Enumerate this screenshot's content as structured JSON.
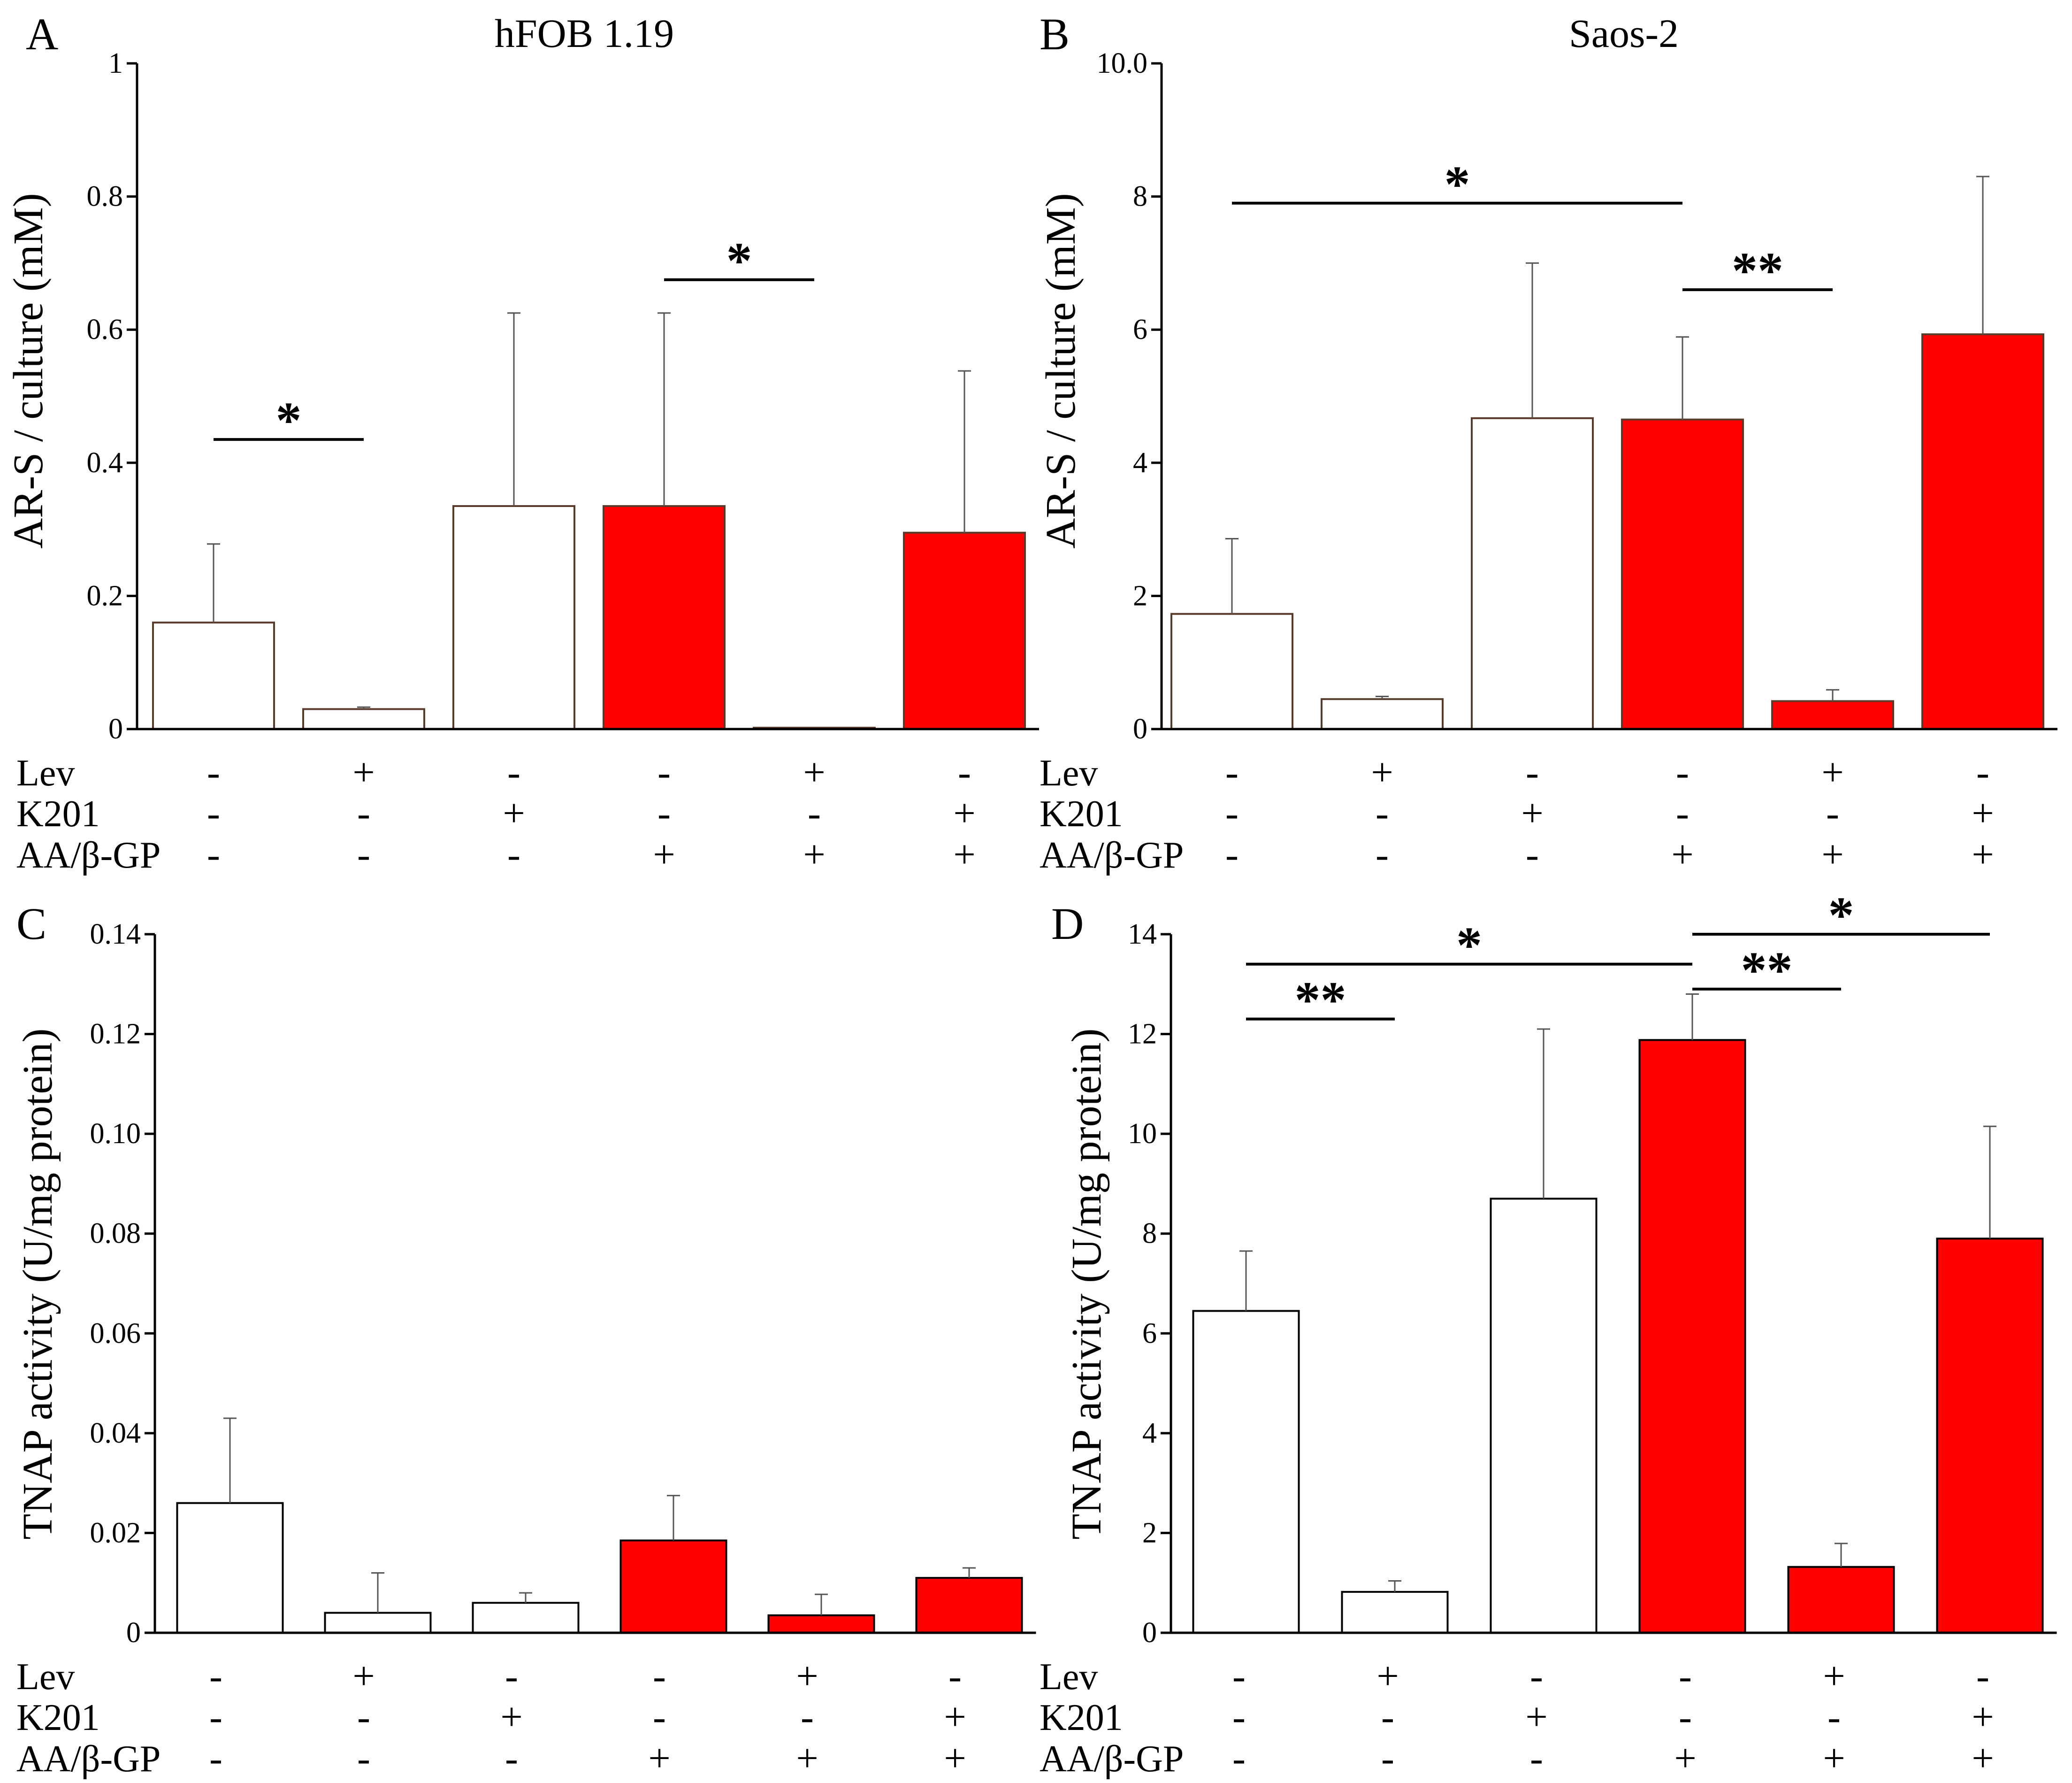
{
  "chart_data": [
    {
      "panel": "A",
      "type": "bar",
      "title": "hFOB 1.19",
      "ylabel": "AR-S / culture (mM)",
      "ylim": [
        0,
        1
      ],
      "yticks": [
        {
          "v": 0,
          "label": "0"
        },
        {
          "v": 0.2,
          "label": "0.2"
        },
        {
          "v": 0.4,
          "label": "0.4"
        },
        {
          "v": 0.6,
          "label": "0.6"
        },
        {
          "v": 0.8,
          "label": "0.8"
        },
        {
          "v": 1,
          "label": "1"
        }
      ],
      "values": [
        0.16,
        0.03,
        0.335,
        0.335,
        0.002,
        0.295
      ],
      "errors": [
        0.118,
        0.003,
        0.29,
        0.29,
        0.0,
        0.243
      ],
      "colors": [
        "#ffffff",
        "#ffffff",
        "#ffffff",
        "#ff0000",
        "#ff0000",
        "#ff0000"
      ],
      "edge_color": "#5a3a2a",
      "significance": [
        {
          "from": 0,
          "to": 1,
          "y": 0.435,
          "label": "*"
        },
        {
          "from": 3,
          "to": 4,
          "y": 0.675,
          "label": "*"
        }
      ]
    },
    {
      "panel": "B",
      "type": "bar",
      "title": "Saos-2",
      "ylabel": "AR-S / culture (mM)",
      "ylim": [
        0,
        10
      ],
      "yticks": [
        {
          "v": 0,
          "label": "0"
        },
        {
          "v": 2,
          "label": "2"
        },
        {
          "v": 4,
          "label": "4"
        },
        {
          "v": 6,
          "label": "6"
        },
        {
          "v": 8,
          "label": "8"
        },
        {
          "v": 10,
          "label": "10.0"
        }
      ],
      "values": [
        1.73,
        0.45,
        4.67,
        4.65,
        0.42,
        5.93
      ],
      "errors": [
        1.13,
        0.04,
        2.33,
        1.24,
        0.17,
        2.37
      ],
      "colors": [
        "#ffffff",
        "#ffffff",
        "#ffffff",
        "#ff0000",
        "#ff0000",
        "#ff0000"
      ],
      "edge_color": "#5a3a2a",
      "significance": [
        {
          "from": 0,
          "to": 3,
          "y": 7.9,
          "label": "*"
        },
        {
          "from": 3,
          "to": 4,
          "y": 6.6,
          "label": "**"
        }
      ]
    },
    {
      "panel": "C",
      "type": "bar",
      "title": "",
      "ylabel": "TNAP activity (U/mg protein)",
      "ylim": [
        0,
        0.14
      ],
      "yticks": [
        {
          "v": 0,
          "label": "0"
        },
        {
          "v": 0.02,
          "label": "0.02"
        },
        {
          "v": 0.04,
          "label": "0.04"
        },
        {
          "v": 0.06,
          "label": "0.06"
        },
        {
          "v": 0.08,
          "label": "0.08"
        },
        {
          "v": 0.1,
          "label": "0.10"
        },
        {
          "v": 0.12,
          "label": "0.12"
        },
        {
          "v": 0.14,
          "label": "0.14"
        }
      ],
      "values": [
        0.026,
        0.004,
        0.006,
        0.0185,
        0.0035,
        0.011
      ],
      "errors": [
        0.017,
        0.008,
        0.002,
        0.009,
        0.0042,
        0.002
      ],
      "colors": [
        "#ffffff",
        "#ffffff",
        "#ffffff",
        "#ff0000",
        "#ff0000",
        "#ff0000"
      ],
      "edge_color": "#000000",
      "significance": []
    },
    {
      "panel": "D",
      "type": "bar",
      "title": "",
      "ylabel": "TNAP activity (U/mg protein)",
      "ylim": [
        0,
        14
      ],
      "yticks": [
        {
          "v": 0,
          "label": "0"
        },
        {
          "v": 2,
          "label": "2"
        },
        {
          "v": 4,
          "label": "4"
        },
        {
          "v": 6,
          "label": "6"
        },
        {
          "v": 8,
          "label": "8"
        },
        {
          "v": 10,
          "label": "10"
        },
        {
          "v": 12,
          "label": "12"
        },
        {
          "v": 14,
          "label": "14"
        }
      ],
      "values": [
        6.45,
        0.82,
        8.7,
        11.88,
        1.32,
        7.9
      ],
      "errors": [
        1.2,
        0.22,
        3.4,
        0.92,
        0.47,
        2.25
      ],
      "colors": [
        "#ffffff",
        "#ffffff",
        "#ffffff",
        "#ff0000",
        "#ff0000",
        "#ff0000"
      ],
      "edge_color": "#000000",
      "significance": [
        {
          "from": 0,
          "to": 1,
          "y": 12.3,
          "label": "**"
        },
        {
          "from": 0,
          "to": 3,
          "y": 13.4,
          "label": "*"
        },
        {
          "from": 3,
          "to": 4,
          "y": 12.9,
          "label": "**"
        },
        {
          "from": 3,
          "to": 5,
          "y": 14.0,
          "label": "*"
        }
      ]
    }
  ],
  "treatments": {
    "row_labels": [
      "Lev",
      "K201",
      "AA/β-GP"
    ],
    "rows": [
      [
        "-",
        "+",
        "-",
        "-",
        "+",
        "-"
      ],
      [
        "-",
        "-",
        "+",
        "-",
        "-",
        "+"
      ],
      [
        "-",
        "-",
        "-",
        "+",
        "+",
        "+"
      ]
    ]
  }
}
